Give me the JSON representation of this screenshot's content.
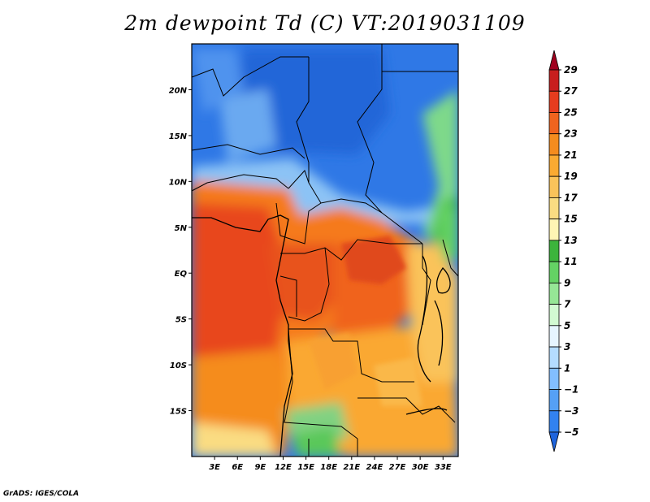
{
  "title": "2m dewpoint Td (C) VT:2019031109",
  "credit": "GrADS: IGES/COLA",
  "map": {
    "lon_range": [
      0,
      35
    ],
    "lat_range": [
      -20,
      25
    ],
    "lat_ticks": [
      {
        "value": 20,
        "label": "20N"
      },
      {
        "value": 15,
        "label": "15N"
      },
      {
        "value": 10,
        "label": "10N"
      },
      {
        "value": 5,
        "label": "5N"
      },
      {
        "value": 0,
        "label": "EQ"
      },
      {
        "value": -5,
        "label": "5S"
      },
      {
        "value": -10,
        "label": "10S"
      },
      {
        "value": -15,
        "label": "15S"
      }
    ],
    "lon_ticks": [
      {
        "value": 3,
        "label": "3E"
      },
      {
        "value": 6,
        "label": "6E"
      },
      {
        "value": 9,
        "label": "9E"
      },
      {
        "value": 12,
        "label": "12E"
      },
      {
        "value": 15,
        "label": "15E"
      },
      {
        "value": 18,
        "label": "18E"
      },
      {
        "value": 21,
        "label": "21E"
      },
      {
        "value": 24,
        "label": "24E"
      },
      {
        "value": 27,
        "label": "27E"
      },
      {
        "value": 30,
        "label": "30E"
      },
      {
        "value": 33,
        "label": "33E"
      }
    ]
  },
  "colorbar": {
    "labels": [
      "29",
      "27",
      "25",
      "23",
      "21",
      "19",
      "17",
      "15",
      "13",
      "11",
      "9",
      "7",
      "5",
      "3",
      "1",
      "−1",
      "−3",
      "−5"
    ],
    "colors": [
      "#a0001e",
      "#c81e1e",
      "#e63c1e",
      "#f0641e",
      "#f58c1e",
      "#faaa32",
      "#fac35a",
      "#fadc82",
      "#fff5b4",
      "#3cb43c",
      "#64d264",
      "#96e696",
      "#d2fad2",
      "#e6f5ff",
      "#b4dcff",
      "#82beff",
      "#55a0f5",
      "#3282f0",
      "#1e64dc"
    ]
  }
}
